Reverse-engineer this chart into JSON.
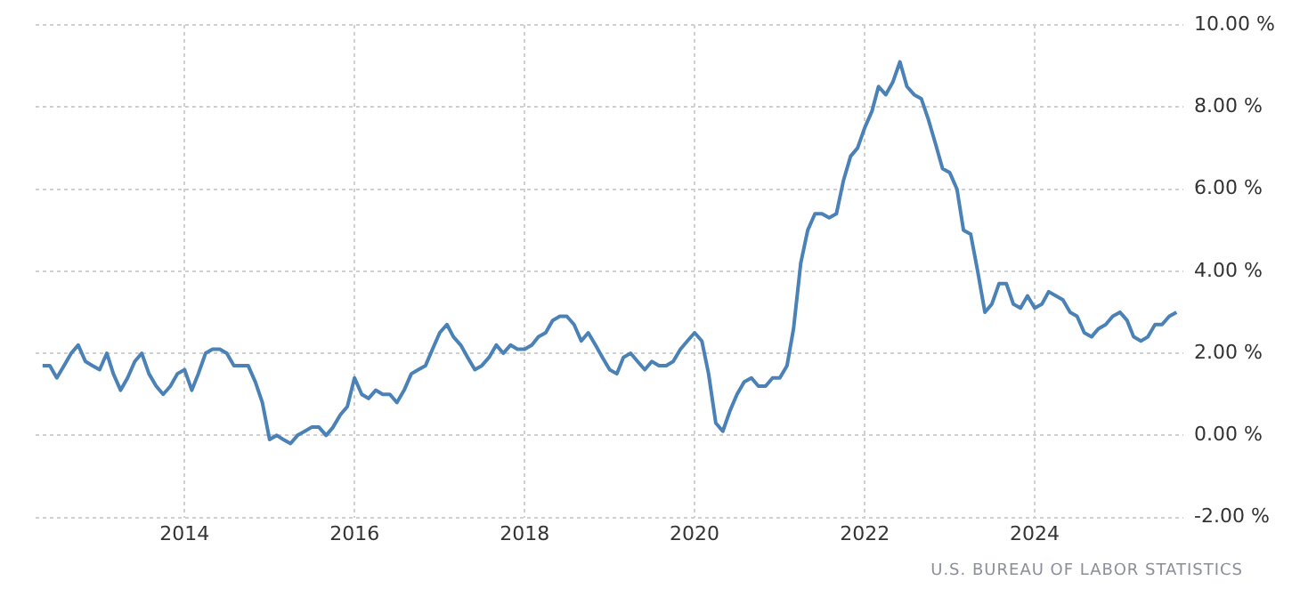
{
  "chart_data": {
    "type": "line",
    "x": [
      "2012-05",
      "2012-06",
      "2012-07",
      "2012-08",
      "2012-09",
      "2012-10",
      "2012-11",
      "2012-12",
      "2013-01",
      "2013-02",
      "2013-03",
      "2013-04",
      "2013-05",
      "2013-06",
      "2013-07",
      "2013-08",
      "2013-09",
      "2013-10",
      "2013-11",
      "2013-12",
      "2014-01",
      "2014-02",
      "2014-03",
      "2014-04",
      "2014-05",
      "2014-06",
      "2014-07",
      "2014-08",
      "2014-09",
      "2014-10",
      "2014-11",
      "2014-12",
      "2015-01",
      "2015-02",
      "2015-03",
      "2015-04",
      "2015-05",
      "2015-06",
      "2015-07",
      "2015-08",
      "2015-09",
      "2015-10",
      "2015-11",
      "2015-12",
      "2016-01",
      "2016-02",
      "2016-03",
      "2016-04",
      "2016-05",
      "2016-06",
      "2016-07",
      "2016-08",
      "2016-09",
      "2016-10",
      "2016-11",
      "2016-12",
      "2017-01",
      "2017-02",
      "2017-03",
      "2017-04",
      "2017-05",
      "2017-06",
      "2017-07",
      "2017-08",
      "2017-09",
      "2017-10",
      "2017-11",
      "2017-12",
      "2018-01",
      "2018-02",
      "2018-03",
      "2018-04",
      "2018-05",
      "2018-06",
      "2018-07",
      "2018-08",
      "2018-09",
      "2018-10",
      "2018-11",
      "2018-12",
      "2019-01",
      "2019-02",
      "2019-03",
      "2019-04",
      "2019-05",
      "2019-06",
      "2019-07",
      "2019-08",
      "2019-09",
      "2019-10",
      "2019-11",
      "2019-12",
      "2020-01",
      "2020-02",
      "2020-03",
      "2020-04",
      "2020-05",
      "2020-06",
      "2020-07",
      "2020-08",
      "2020-09",
      "2020-10",
      "2020-11",
      "2020-12",
      "2021-01",
      "2021-02",
      "2021-03",
      "2021-04",
      "2021-05",
      "2021-06",
      "2021-07",
      "2021-08",
      "2021-09",
      "2021-10",
      "2021-11",
      "2021-12",
      "2022-01",
      "2022-02",
      "2022-03",
      "2022-04",
      "2022-05",
      "2022-06",
      "2022-07",
      "2022-08",
      "2022-09",
      "2022-10",
      "2022-11",
      "2022-12",
      "2023-01",
      "2023-02",
      "2023-03",
      "2023-04",
      "2023-05",
      "2023-06",
      "2023-07",
      "2023-08",
      "2023-09",
      "2023-10",
      "2023-11",
      "2023-12",
      "2024-01",
      "2024-02",
      "2024-03",
      "2024-04",
      "2024-05",
      "2024-06",
      "2024-07",
      "2024-08",
      "2024-09",
      "2024-10",
      "2024-11",
      "2024-12",
      "2025-01",
      "2025-02",
      "2025-03",
      "2025-04",
      "2025-05",
      "2025-06",
      "2025-07",
      "2025-08",
      "2025-09"
    ],
    "series": [
      {
        "color": "#4a82b8",
        "values": [
          1.7,
          1.7,
          1.4,
          1.7,
          2.0,
          2.2,
          1.8,
          1.7,
          1.6,
          2.0,
          1.5,
          1.1,
          1.4,
          1.8,
          2.0,
          1.5,
          1.2,
          1.0,
          1.2,
          1.5,
          1.6,
          1.1,
          1.5,
          2.0,
          2.1,
          2.1,
          2.0,
          1.7,
          1.7,
          1.7,
          1.3,
          0.8,
          -0.1,
          0.0,
          -0.1,
          -0.2,
          0.0,
          0.1,
          0.2,
          0.2,
          0.0,
          0.2,
          0.5,
          0.7,
          1.4,
          1.0,
          0.9,
          1.1,
          1.0,
          1.0,
          0.8,
          1.1,
          1.5,
          1.6,
          1.7,
          2.1,
          2.5,
          2.7,
          2.4,
          2.2,
          1.9,
          1.6,
          1.7,
          1.9,
          2.2,
          2.0,
          2.2,
          2.1,
          2.1,
          2.2,
          2.4,
          2.5,
          2.8,
          2.9,
          2.9,
          2.7,
          2.3,
          2.5,
          2.2,
          1.9,
          1.6,
          1.5,
          1.9,
          2.0,
          1.8,
          1.6,
          1.8,
          1.7,
          1.7,
          1.8,
          2.1,
          2.3,
          2.5,
          2.3,
          1.5,
          0.3,
          0.1,
          0.6,
          1.0,
          1.3,
          1.4,
          1.2,
          1.2,
          1.4,
          1.4,
          1.7,
          2.6,
          4.2,
          5.0,
          5.4,
          5.4,
          5.3,
          5.4,
          6.2,
          6.8,
          7.0,
          7.5,
          7.9,
          8.5,
          8.3,
          8.6,
          9.1,
          8.5,
          8.3,
          8.2,
          7.7,
          7.1,
          6.5,
          6.4,
          6.0,
          5.0,
          4.9,
          4.0,
          3.0,
          3.2,
          3.7,
          3.7,
          3.2,
          3.1,
          3.4,
          3.1,
          3.2,
          3.5,
          3.4,
          3.3,
          3.0,
          2.9,
          2.5,
          2.4,
          2.6,
          2.7,
          2.9,
          3.0,
          2.8,
          2.4,
          2.3,
          2.4,
          2.7,
          2.7,
          2.9,
          3.0
        ]
      }
    ],
    "xlim": [
      "2012-04",
      "2025-10"
    ],
    "xticks": [
      "2014",
      "2016",
      "2018",
      "2020",
      "2022",
      "2024"
    ],
    "ylim": [
      -2,
      10
    ],
    "yticks": [
      {
        "value": -2,
        "label": "-2.00 %"
      },
      {
        "value": 0,
        "label": "0.00 %"
      },
      {
        "value": 2,
        "label": "2.00 %"
      },
      {
        "value": 4,
        "label": "4.00 %"
      },
      {
        "value": 6,
        "label": "6.00 %"
      },
      {
        "value": 8,
        "label": "8.00 %"
      },
      {
        "value": 10,
        "label": "10.00 %"
      }
    ],
    "grid": true,
    "legend": false,
    "marker": "none",
    "line_style": "solid",
    "annotations": [
      "U.S. BUREAU OF LABOR STATISTICS"
    ]
  }
}
